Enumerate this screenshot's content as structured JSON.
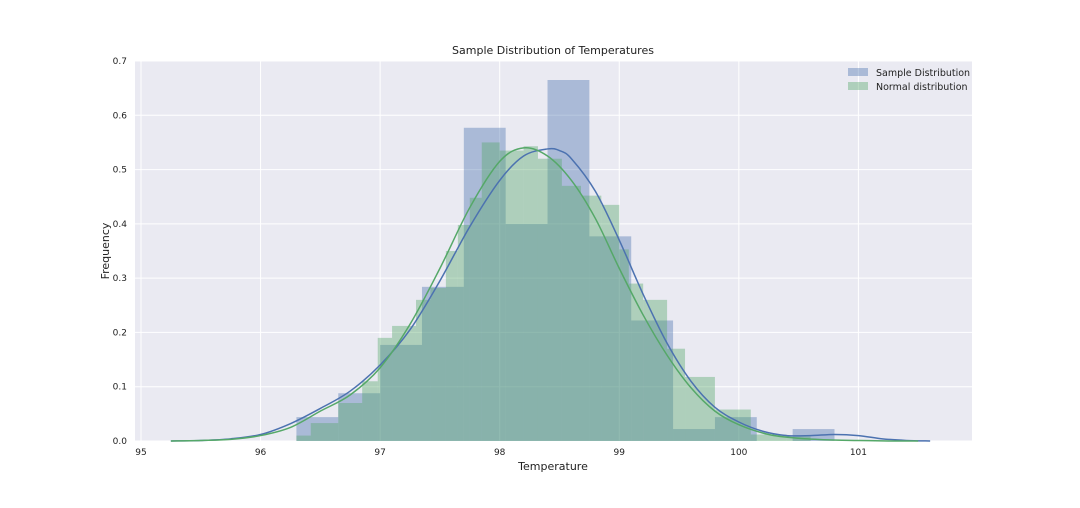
{
  "chart_data": {
    "type": "histogram",
    "title": "Sample Distribution of Temperatures",
    "xlabel": "Temperature",
    "ylabel": "Frequency",
    "xlim": [
      94.95,
      101.95
    ],
    "ylim": [
      0,
      0.7
    ],
    "xticks": [
      95,
      96,
      97,
      98,
      99,
      100,
      101
    ],
    "yticks": [
      0.0,
      0.1,
      0.2,
      0.3,
      0.4,
      0.5,
      0.6,
      0.7
    ],
    "grid": true,
    "legend": {
      "location": "top-right",
      "entries": [
        "Sample Distribution",
        "Normal distribution"
      ]
    },
    "series": [
      {
        "name": "Sample Distribution",
        "color": "#4c72b0",
        "bins": [
          {
            "x0": 96.3,
            "x1": 96.65,
            "y": 0.044
          },
          {
            "x0": 96.65,
            "x1": 97.0,
            "y": 0.088
          },
          {
            "x0": 97.0,
            "x1": 97.35,
            "y": 0.177
          },
          {
            "x0": 97.35,
            "x1": 97.7,
            "y": 0.284
          },
          {
            "x0": 97.7,
            "x1": 98.05,
            "y": 0.577
          },
          {
            "x0": 98.05,
            "x1": 98.4,
            "y": 0.4
          },
          {
            "x0": 98.4,
            "x1": 98.75,
            "y": 0.665
          },
          {
            "x0": 98.75,
            "x1": 99.1,
            "y": 0.377
          },
          {
            "x0": 99.1,
            "x1": 99.45,
            "y": 0.222
          },
          {
            "x0": 99.45,
            "x1": 99.8,
            "y": 0.022
          },
          {
            "x0": 99.8,
            "x1": 100.15,
            "y": 0.044
          },
          {
            "x0": 100.15,
            "x1": 100.45,
            "y": 0.0
          },
          {
            "x0": 100.45,
            "x1": 100.8,
            "y": 0.022
          }
        ],
        "kde": {
          "x": [
            95.25,
            95.5,
            95.75,
            96.0,
            96.25,
            96.5,
            96.75,
            97.0,
            97.25,
            97.5,
            97.75,
            98.0,
            98.2,
            98.4,
            98.5,
            98.6,
            98.8,
            99.0,
            99.2,
            99.4,
            99.6,
            99.8,
            100.0,
            100.2,
            100.4,
            100.6,
            100.8,
            101.0,
            101.2,
            101.4,
            101.6
          ],
          "y": [
            0.0,
            0.001,
            0.004,
            0.012,
            0.032,
            0.06,
            0.092,
            0.14,
            0.205,
            0.295,
            0.395,
            0.48,
            0.525,
            0.538,
            0.535,
            0.52,
            0.46,
            0.37,
            0.27,
            0.18,
            0.11,
            0.062,
            0.035,
            0.018,
            0.01,
            0.01,
            0.012,
            0.01,
            0.004,
            0.001,
            0.0
          ]
        }
      },
      {
        "name": "Normal distribution",
        "color": "#55a868",
        "bins": [
          {
            "x0": 96.3,
            "x1": 96.42,
            "y": 0.01
          },
          {
            "x0": 96.42,
            "x1": 96.65,
            "y": 0.033
          },
          {
            "x0": 96.65,
            "x1": 96.85,
            "y": 0.07
          },
          {
            "x0": 96.85,
            "x1": 96.98,
            "y": 0.11
          },
          {
            "x0": 96.98,
            "x1": 97.1,
            "y": 0.19
          },
          {
            "x0": 97.1,
            "x1": 97.3,
            "y": 0.212
          },
          {
            "x0": 97.3,
            "x1": 97.42,
            "y": 0.26
          },
          {
            "x0": 97.42,
            "x1": 97.55,
            "y": 0.282
          },
          {
            "x0": 97.55,
            "x1": 97.65,
            "y": 0.35
          },
          {
            "x0": 97.65,
            "x1": 97.75,
            "y": 0.398
          },
          {
            "x0": 97.75,
            "x1": 97.85,
            "y": 0.448
          },
          {
            "x0": 97.85,
            "x1": 98.0,
            "y": 0.55
          },
          {
            "x0": 98.0,
            "x1": 98.2,
            "y": 0.535
          },
          {
            "x0": 98.2,
            "x1": 98.32,
            "y": 0.543
          },
          {
            "x0": 98.32,
            "x1": 98.52,
            "y": 0.52
          },
          {
            "x0": 98.52,
            "x1": 98.68,
            "y": 0.47
          },
          {
            "x0": 98.68,
            "x1": 98.85,
            "y": 0.452
          },
          {
            "x0": 98.85,
            "x1": 99.0,
            "y": 0.435
          },
          {
            "x0": 99.0,
            "x1": 99.08,
            "y": 0.353
          },
          {
            "x0": 99.08,
            "x1": 99.2,
            "y": 0.29
          },
          {
            "x0": 99.2,
            "x1": 99.4,
            "y": 0.26
          },
          {
            "x0": 99.4,
            "x1": 99.55,
            "y": 0.17
          },
          {
            "x0": 99.55,
            "x1": 99.8,
            "y": 0.118
          },
          {
            "x0": 99.8,
            "x1": 100.1,
            "y": 0.058
          },
          {
            "x0": 100.1,
            "x1": 100.4,
            "y": 0.012
          },
          {
            "x0": 100.4,
            "x1": 100.6,
            "y": 0.008
          }
        ],
        "kde": {
          "x": [
            95.25,
            95.5,
            95.75,
            96.0,
            96.25,
            96.5,
            96.75,
            97.0,
            97.25,
            97.5,
            97.75,
            98.0,
            98.2,
            98.4,
            98.6,
            98.8,
            99.0,
            99.2,
            99.4,
            99.6,
            99.8,
            100.0,
            100.25,
            100.5,
            100.75,
            101.0,
            101.25,
            101.5
          ],
          "y": [
            0.0,
            0.001,
            0.003,
            0.01,
            0.025,
            0.055,
            0.085,
            0.135,
            0.215,
            0.318,
            0.43,
            0.515,
            0.54,
            0.525,
            0.48,
            0.41,
            0.318,
            0.232,
            0.158,
            0.098,
            0.055,
            0.03,
            0.012,
            0.005,
            0.002,
            0.001,
            0.0,
            0.0
          ]
        }
      }
    ]
  }
}
